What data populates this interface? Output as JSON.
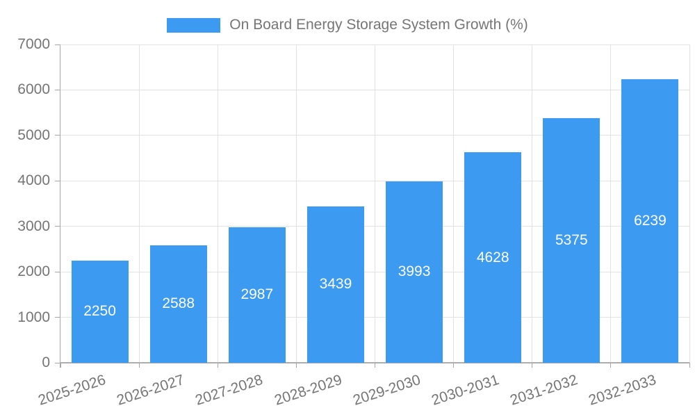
{
  "chart_data": {
    "type": "bar",
    "title": "On Board Energy Storage System Growth (%)",
    "categories": [
      "2025-2026",
      "2026-2027",
      "2027-2028",
      "2028-2029",
      "2029-2030",
      "2030-2031",
      "2031-2032",
      "2032-2033"
    ],
    "series": [
      {
        "name": "On Board Energy Storage System Growth (%)",
        "values": [
          2250,
          2588,
          2987,
          3439,
          3993,
          4628,
          5375,
          6239
        ]
      }
    ],
    "xlabel": "",
    "ylabel": "",
    "ylim": [
      0,
      7000
    ],
    "yticks": [
      0,
      1000,
      2000,
      3000,
      4000,
      5000,
      6000,
      7000
    ],
    "grid": true,
    "legend_position": "top-center",
    "x_label_rotation_deg": -18,
    "colors": {
      "bar": "#3C9BF0",
      "bar_label": "#FFFFFF",
      "axis_text": "#757575",
      "gridline": "#E2E2E2",
      "axis_line": "#A6A6A6",
      "baseline": "#ADADAD",
      "background": "#FFFFFF"
    }
  }
}
